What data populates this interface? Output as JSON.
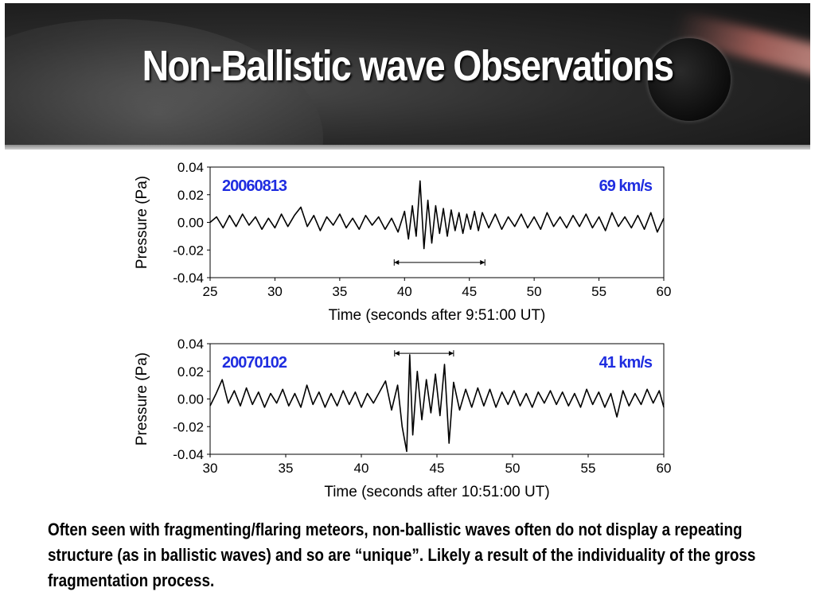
{
  "slide": {
    "title": "Non-Ballistic wave Observations",
    "caption": "Often seen with fragmenting/flaring meteors, non-ballistic waves often do not display a repeating structure (as in ballistic waves) and so are “unique”. Likely a result of the individuality of the gross fragmentation process."
  },
  "colors": {
    "trace": "#000000",
    "label": "#1f2de0",
    "title": "#ffffff"
  },
  "chart_data": [
    {
      "type": "line",
      "event_label": "20060813",
      "speed_label": "69 km/s",
      "xlabel": "Time (seconds after 9:51:00 UT)",
      "ylabel": "Pressure (Pa)",
      "xlim": [
        25,
        60
      ],
      "ylim": [
        -0.04,
        0.04
      ],
      "xticks": [
        "25",
        "30",
        "35",
        "40",
        "45",
        "50",
        "55",
        "60"
      ],
      "yticks": [
        "0.04",
        "0.02",
        "0.00",
        "-0.02",
        "-0.04"
      ],
      "interval_marker": [
        39.2,
        46.2
      ],
      "series": [
        {
          "x": [
            25.0,
            25.5,
            26.0,
            26.5,
            27.0,
            27.5,
            28.0,
            28.5,
            29.0,
            29.5,
            30.0,
            30.5,
            31.0,
            31.5,
            32.0,
            32.5,
            33.0,
            33.5,
            34.0,
            34.5,
            35.0,
            35.5,
            36.0,
            36.5,
            37.0,
            37.5,
            38.0,
            38.5,
            39.0,
            39.5,
            40.0,
            40.3,
            40.6,
            40.9,
            41.2,
            41.5,
            41.8,
            42.1,
            42.4,
            42.7,
            43.0,
            43.3,
            43.6,
            43.9,
            44.2,
            44.5,
            44.8,
            45.1,
            45.4,
            45.7,
            46.0,
            46.5,
            47.0,
            47.5,
            48.0,
            48.5,
            49.0,
            49.5,
            50.0,
            50.5,
            51.0,
            51.5,
            52.0,
            52.5,
            53.0,
            53.5,
            54.0,
            54.5,
            55.0,
            55.5,
            56.0,
            56.5,
            57.0,
            57.5,
            58.0,
            58.5,
            59.0,
            59.5,
            60.0
          ],
          "y": [
            0.0,
            0.004,
            -0.004,
            0.005,
            -0.003,
            0.006,
            -0.002,
            0.004,
            -0.005,
            0.003,
            -0.004,
            0.006,
            -0.003,
            0.005,
            0.011,
            -0.003,
            0.005,
            -0.006,
            0.004,
            -0.002,
            0.006,
            -0.004,
            0.003,
            -0.005,
            0.005,
            -0.002,
            0.004,
            -0.005,
            0.003,
            -0.007,
            0.008,
            -0.012,
            0.012,
            -0.01,
            0.03,
            -0.019,
            0.016,
            -0.015,
            0.012,
            -0.008,
            0.01,
            -0.01,
            0.009,
            -0.006,
            0.007,
            -0.008,
            0.006,
            -0.005,
            0.008,
            -0.006,
            0.007,
            -0.004,
            0.006,
            -0.005,
            0.004,
            -0.003,
            0.006,
            -0.004,
            0.004,
            -0.005,
            0.007,
            -0.003,
            0.004,
            -0.004,
            0.005,
            -0.003,
            0.006,
            -0.004,
            0.004,
            -0.006,
            0.007,
            -0.003,
            0.004,
            -0.004,
            0.005,
            -0.005,
            0.007,
            -0.007,
            0.003
          ]
        }
      ]
    },
    {
      "type": "line",
      "event_label": "20070102",
      "speed_label": "41 km/s",
      "xlabel": "Time (seconds after 10:51:00 UT)",
      "ylabel": "Pressure (Pa)",
      "xlim": [
        30,
        60
      ],
      "ylim": [
        -0.04,
        0.04
      ],
      "xticks": [
        "30",
        "35",
        "40",
        "45",
        "50",
        "55",
        "60"
      ],
      "yticks": [
        "0.04",
        "0.02",
        "0.00",
        "-0.02",
        "-0.04"
      ],
      "interval_marker": [
        42.2,
        46.1
      ],
      "series": [
        {
          "x": [
            30.0,
            30.4,
            30.8,
            31.2,
            31.6,
            32.0,
            32.4,
            32.8,
            33.2,
            33.6,
            34.0,
            34.4,
            34.8,
            35.2,
            35.6,
            36.0,
            36.4,
            36.8,
            37.2,
            37.6,
            38.0,
            38.4,
            38.8,
            39.2,
            39.6,
            40.0,
            40.4,
            40.8,
            41.2,
            41.6,
            42.0,
            42.4,
            42.7,
            43.0,
            43.2,
            43.4,
            43.7,
            44.0,
            44.3,
            44.6,
            44.9,
            45.2,
            45.5,
            45.8,
            46.1,
            46.5,
            46.9,
            47.3,
            47.7,
            48.1,
            48.5,
            48.9,
            49.3,
            49.7,
            50.1,
            50.5,
            50.9,
            51.3,
            51.7,
            52.1,
            52.5,
            52.9,
            53.3,
            53.7,
            54.1,
            54.5,
            54.9,
            55.3,
            55.7,
            56.1,
            56.5,
            56.9,
            57.3,
            57.7,
            58.1,
            58.5,
            58.9,
            59.3,
            59.7,
            60.0
          ],
          "y": [
            -0.005,
            0.004,
            0.014,
            -0.003,
            0.006,
            -0.005,
            0.008,
            -0.004,
            0.005,
            -0.006,
            0.004,
            -0.003,
            0.007,
            -0.005,
            0.004,
            -0.006,
            0.01,
            -0.004,
            0.005,
            -0.006,
            0.004,
            -0.005,
            0.006,
            -0.004,
            0.005,
            -0.006,
            0.004,
            -0.003,
            0.005,
            0.013,
            -0.008,
            0.01,
            -0.02,
            -0.038,
            0.032,
            -0.026,
            0.02,
            -0.015,
            0.014,
            -0.01,
            0.018,
            -0.012,
            0.025,
            -0.032,
            0.012,
            -0.008,
            0.007,
            -0.006,
            0.008,
            -0.005,
            0.007,
            -0.006,
            0.005,
            -0.004,
            0.006,
            -0.005,
            0.004,
            -0.006,
            0.005,
            -0.003,
            0.006,
            -0.004,
            0.005,
            -0.005,
            0.004,
            -0.006,
            0.007,
            -0.004,
            0.005,
            -0.006,
            0.004,
            -0.013,
            0.006,
            -0.005,
            0.004,
            -0.004,
            0.007,
            -0.003,
            0.006,
            -0.006
          ]
        }
      ]
    }
  ]
}
